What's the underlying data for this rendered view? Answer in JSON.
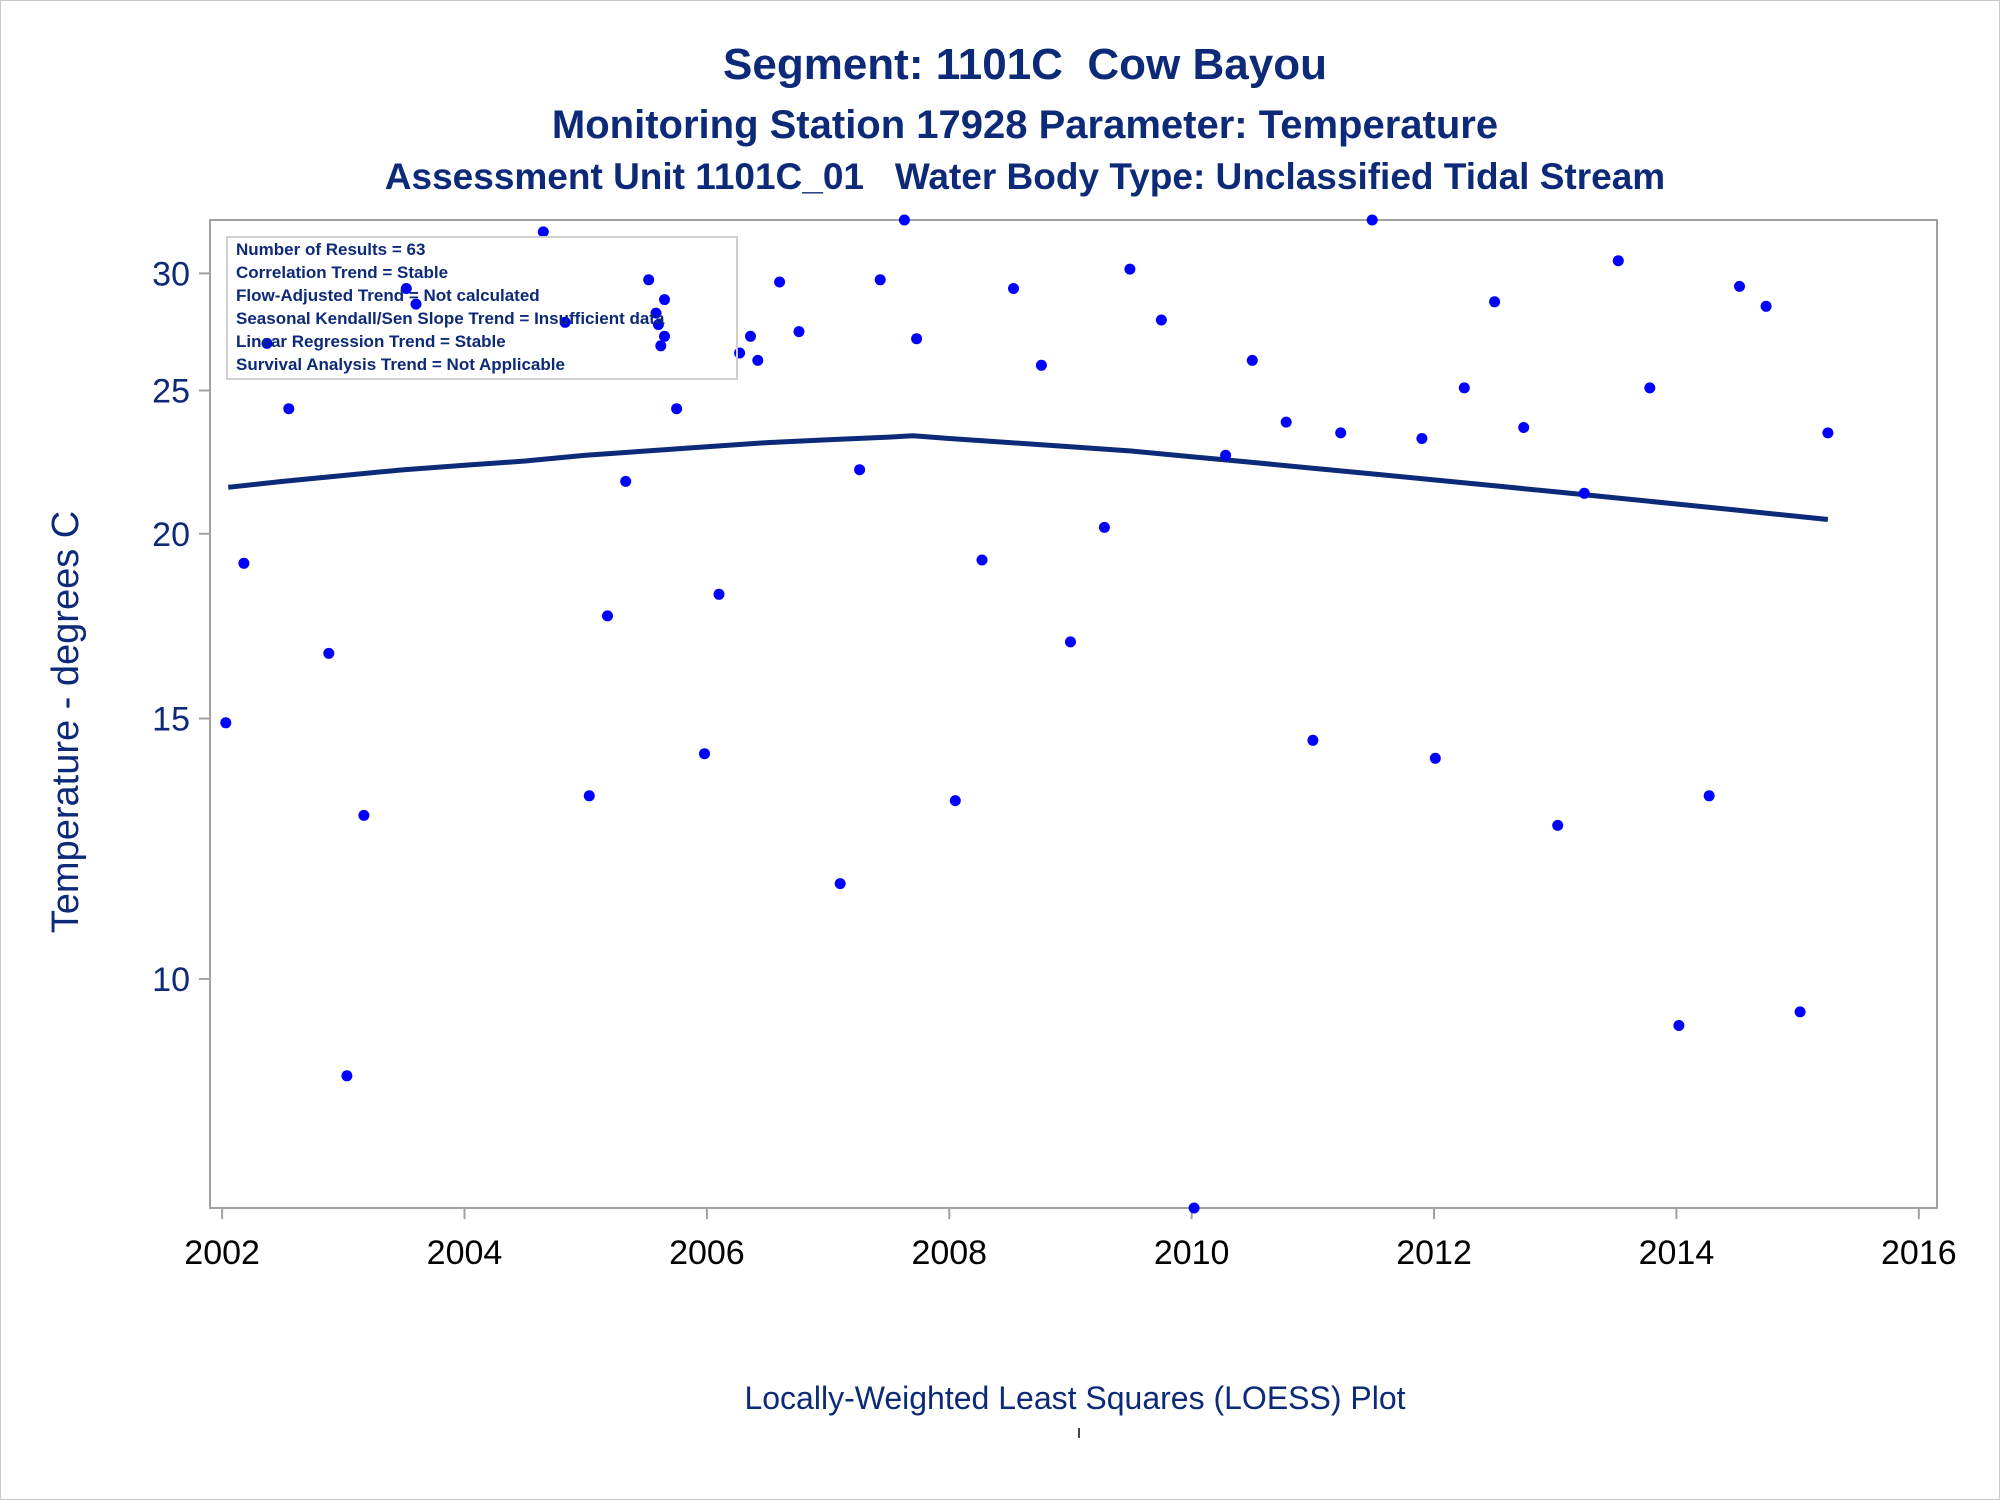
{
  "titles": {
    "line1": "Segment: 1101C  Cow Bayou",
    "line2": "Monitoring Station 17928 Parameter: Temperature",
    "line3": "Assessment Unit 1101C_01   Water Body Type: Unclassified Tidal Stream"
  },
  "stats_box": [
    "Number of Results = 63",
    "Correlation Trend = Stable",
    "Flow-Adjusted Trend = Not calculated",
    "Seasonal Kendall/Sen Slope Trend = Insufficient data",
    "Linear Regression Trend = Stable",
    "Survival Analysis Trend = Not Applicable"
  ],
  "footnote": "Locally-Weighted Least Squares (LOESS) Plot",
  "colors": {
    "text": "#0d2a78",
    "points": "#0000ff",
    "loess": "#0d2a78",
    "axis": "#a0a0a0"
  },
  "chart_data": {
    "type": "scatter",
    "ylabel": "Temperature - degrees C",
    "xlabel": "",
    "y_scale": "log",
    "xlim": [
      2001.9,
      2016.15
    ],
    "ylim": [
      7.0,
      32.6
    ],
    "x_ticks": [
      2002,
      2004,
      2006,
      2008,
      2010,
      2012,
      2014,
      2016
    ],
    "y_ticks": [
      10,
      15,
      20,
      25,
      30
    ],
    "grid": false,
    "series": [
      {
        "kind": "points",
        "points": [
          [
            2002.03,
            14.9
          ],
          [
            2002.18,
            19.1
          ],
          [
            2002.37,
            26.9
          ],
          [
            2002.55,
            24.3
          ],
          [
            2002.88,
            16.6
          ],
          [
            2003.03,
            8.6
          ],
          [
            2003.17,
            12.9
          ],
          [
            2003.52,
            29.3
          ],
          [
            2003.6,
            28.6
          ],
          [
            2004.65,
            32.0
          ],
          [
            2004.83,
            27.8
          ],
          [
            2005.03,
            13.3
          ],
          [
            2005.18,
            17.6
          ],
          [
            2005.33,
            21.7
          ],
          [
            2005.52,
            29.7
          ],
          [
            2005.58,
            28.2
          ],
          [
            2005.6,
            27.7
          ],
          [
            2005.62,
            26.8
          ],
          [
            2005.65,
            28.8
          ],
          [
            2005.65,
            27.2
          ],
          [
            2005.75,
            24.3
          ],
          [
            2005.98,
            14.2
          ],
          [
            2006.1,
            18.2
          ],
          [
            2006.27,
            26.5
          ],
          [
            2006.36,
            27.2
          ],
          [
            2006.42,
            26.2
          ],
          [
            2006.6,
            29.6
          ],
          [
            2006.76,
            27.4
          ],
          [
            2007.1,
            11.6
          ],
          [
            2007.26,
            22.1
          ],
          [
            2007.43,
            29.7
          ],
          [
            2007.63,
            32.6
          ],
          [
            2007.73,
            27.1
          ],
          [
            2008.05,
            13.2
          ],
          [
            2008.27,
            19.2
          ],
          [
            2008.53,
            29.3
          ],
          [
            2008.76,
            26.0
          ],
          [
            2009.0,
            16.9
          ],
          [
            2009.28,
            20.2
          ],
          [
            2009.49,
            30.2
          ],
          [
            2009.75,
            27.9
          ],
          [
            2010.02,
            7.0
          ],
          [
            2010.28,
            22.6
          ],
          [
            2010.5,
            26.2
          ],
          [
            2010.78,
            23.8
          ],
          [
            2011.0,
            14.5
          ],
          [
            2011.23,
            23.4
          ],
          [
            2011.49,
            32.6
          ],
          [
            2011.9,
            23.2
          ],
          [
            2012.01,
            14.1
          ],
          [
            2012.25,
            25.1
          ],
          [
            2012.5,
            28.7
          ],
          [
            2012.74,
            23.6
          ],
          [
            2013.02,
            12.7
          ],
          [
            2013.24,
            21.3
          ],
          [
            2013.52,
            30.6
          ],
          [
            2013.78,
            25.1
          ],
          [
            2014.02,
            9.3
          ],
          [
            2014.27,
            13.3
          ],
          [
            2014.52,
            29.4
          ],
          [
            2014.74,
            28.5
          ],
          [
            2015.02,
            9.5
          ],
          [
            2015.25,
            23.4
          ]
        ]
      },
      {
        "kind": "loess",
        "points": [
          [
            2002.05,
            21.5
          ],
          [
            2002.5,
            21.7
          ],
          [
            2003.0,
            21.9
          ],
          [
            2003.5,
            22.1
          ],
          [
            2004.0,
            22.25
          ],
          [
            2004.5,
            22.4
          ],
          [
            2005.0,
            22.6
          ],
          [
            2005.5,
            22.75
          ],
          [
            2006.0,
            22.9
          ],
          [
            2006.5,
            23.05
          ],
          [
            2007.0,
            23.15
          ],
          [
            2007.5,
            23.25
          ],
          [
            2007.7,
            23.3
          ],
          [
            2008.0,
            23.2
          ],
          [
            2008.5,
            23.05
          ],
          [
            2009.0,
            22.9
          ],
          [
            2009.5,
            22.75
          ],
          [
            2010.0,
            22.55
          ],
          [
            2010.5,
            22.35
          ],
          [
            2011.0,
            22.15
          ],
          [
            2011.5,
            21.95
          ],
          [
            2012.0,
            21.75
          ],
          [
            2012.5,
            21.55
          ],
          [
            2013.0,
            21.35
          ],
          [
            2013.5,
            21.15
          ],
          [
            2014.0,
            20.95
          ],
          [
            2014.5,
            20.75
          ],
          [
            2015.0,
            20.55
          ],
          [
            2015.25,
            20.45
          ]
        ]
      }
    ]
  }
}
